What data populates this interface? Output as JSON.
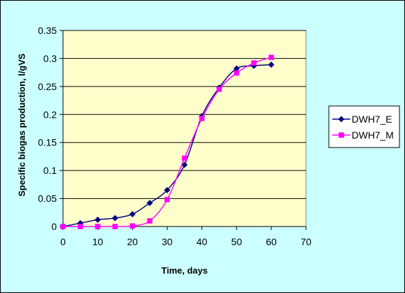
{
  "chart_data": {
    "type": "line",
    "xlabel": "Time, days",
    "ylabel": "Specific biogas production, l/gVS",
    "xlim": [
      0,
      70
    ],
    "ylim": [
      0,
      0.35
    ],
    "xticks": [
      "0",
      "10",
      "20",
      "30",
      "40",
      "50",
      "60",
      "70"
    ],
    "yticks": [
      "0",
      "0.05",
      "0.1",
      "0.15",
      "0.2",
      "0.25",
      "0.3",
      "0.35"
    ],
    "grid": "horizontal",
    "legend_position": "right",
    "plot_background": "#ffffcc",
    "chart_background": "#ccffff",
    "series": [
      {
        "name": "DWH7_E",
        "color": "#000080",
        "marker": "diamond",
        "x": [
          0,
          5,
          10,
          15,
          20,
          25,
          30,
          35,
          40,
          45,
          50,
          55,
          60
        ],
        "y": [
          0,
          0.006,
          0.012,
          0.015,
          0.022,
          0.042,
          0.065,
          0.11,
          0.197,
          0.248,
          0.282,
          0.287,
          0.289
        ]
      },
      {
        "name": "DWH7_M",
        "color": "#ff00ff",
        "marker": "square",
        "x": [
          0,
          5,
          10,
          15,
          20,
          25,
          30,
          35,
          40,
          45,
          50,
          55,
          60
        ],
        "y": [
          0,
          0,
          0,
          0,
          0.001,
          0.01,
          0.048,
          0.122,
          0.193,
          0.245,
          0.274,
          0.292,
          0.302
        ]
      }
    ]
  }
}
